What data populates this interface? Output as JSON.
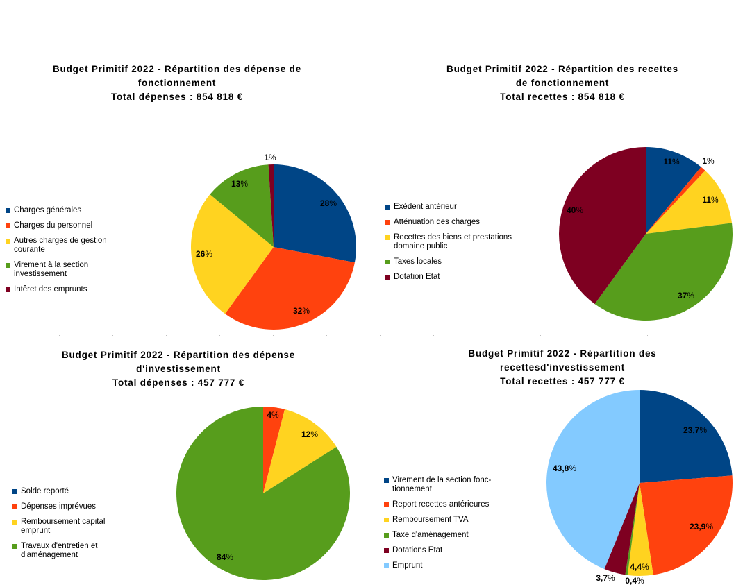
{
  "chart_data": [
    {
      "type": "pie",
      "title": [
        "Budget Primitif 2022 - Répartition des dépense de",
        "fonctionnement",
        "Total dépenses : 854 818 €"
      ],
      "categories": [
        "Charges générales",
        "Charges du personnel",
        "Autres charges de gestion courante",
        "Virement à la section investissement",
        "Intêret des emprunts"
      ],
      "values": [
        28,
        32,
        26,
        13,
        1
      ],
      "labels": [
        "28%",
        "32%",
        "26%",
        "13%",
        "1%"
      ],
      "colors": [
        "#004586",
        "#ff420e",
        "#ffd320",
        "#579d1c",
        "#7e0021"
      ],
      "legend": "left"
    },
    {
      "type": "pie",
      "title": [
        "Budget Primitif 2022 - Répartition des recettes",
        "de fonctionnement",
        "Total recettes : 854 818 €"
      ],
      "categories": [
        "Exédent antérieur",
        "Atténuation des charges",
        "Recettes des biens et prestations domaine public",
        "Taxes locales",
        "Dotation Etat"
      ],
      "values": [
        11,
        1,
        11,
        37,
        40
      ],
      "labels": [
        "11%",
        "1%",
        "11%",
        "37%",
        "40%"
      ],
      "colors": [
        "#004586",
        "#ff420e",
        "#ffd320",
        "#579d1c",
        "#7e0021"
      ],
      "legend": "left"
    },
    {
      "type": "pie",
      "title": [
        "Budget Primitif 2022 - Répartition des dépense",
        "d'investissement",
        "Total dépenses : 457 777 €"
      ],
      "categories": [
        "Solde reporté",
        "Dépenses imprévues",
        "Remboursement capital emprunt",
        "Travaux d'entretien et d'aménagement"
      ],
      "values": [
        0,
        4,
        12,
        84
      ],
      "labels": [
        "",
        "4%",
        "12%",
        "84%"
      ],
      "colors": [
        "#004586",
        "#ff420e",
        "#ffd320",
        "#579d1c"
      ],
      "legend": "left"
    },
    {
      "type": "pie",
      "title": [
        "Budget Primitif 2022 - Répartition des",
        "recettesd'investissement",
        "Total recettes : 457 777 €"
      ],
      "categories": [
        "Virement de la section fonctionnement",
        "Report recettes antérieures",
        "Remboursement TVA",
        "Taxe d'aménagement",
        "Dotations Etat",
        "Emprunt"
      ],
      "legend_labels": [
        "Virement de la section fonc- tionnement",
        "Report recettes antérieures",
        "Remboursement TVA",
        "Taxe d'aménagement",
        "Dotations Etat",
        "Emprunt"
      ],
      "values": [
        23.7,
        23.9,
        4.4,
        0.4,
        3.7,
        43.8
      ],
      "labels": [
        "23,7%",
        "23,9%",
        "4,4%",
        "0,4%",
        "3,7%",
        "43,8%"
      ],
      "colors": [
        "#004586",
        "#ff420e",
        "#ffd320",
        "#579d1c",
        "#7e0021",
        "#83caff"
      ],
      "legend": "left"
    }
  ]
}
